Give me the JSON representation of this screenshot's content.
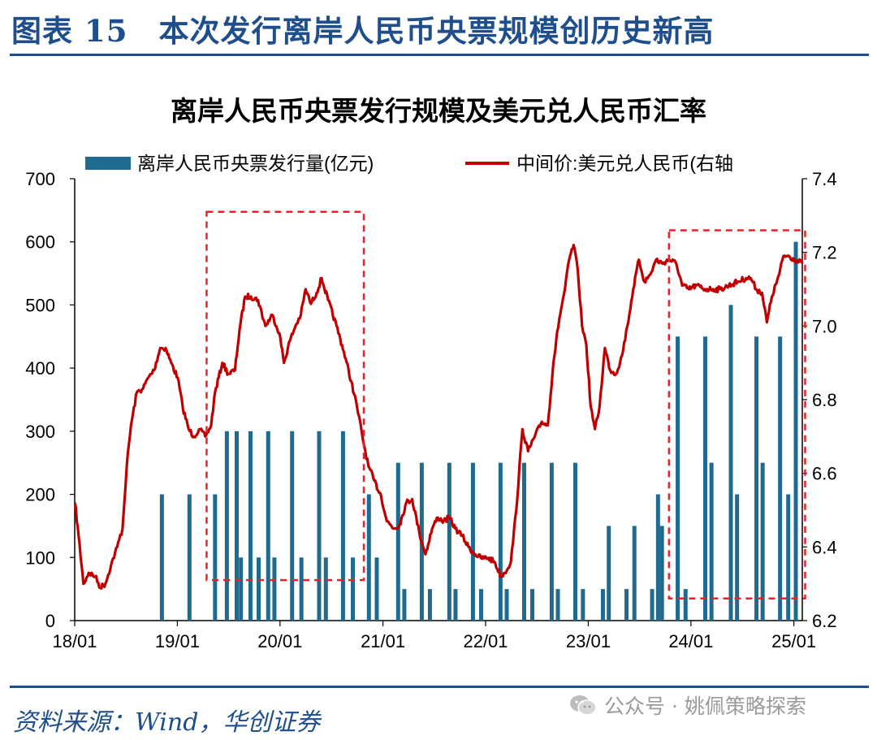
{
  "header": {
    "prefix": "图表",
    "number": "15",
    "title": "本次发行离岸人民币央票规模创历史新高"
  },
  "source": "资料来源：Wind，华创证券",
  "watermark": {
    "dot": "公众号 · 姚佩策略探索",
    "icon": "wechat-icon"
  },
  "colors": {
    "bar": "#1f6b8f",
    "line": "#c00000",
    "box": "#e8212c",
    "brand": "#1f4e8c"
  },
  "chart_data": {
    "type": "bar+line",
    "title": "离岸人民币央票发行规模及美元兑人民币汇率",
    "legend": [
      "离岸人民币央票发行量(亿元)",
      "中间价:美元兑人民币(右轴"
    ],
    "legend_position": "top",
    "grid": false,
    "x_range": [
      "2018-01-01",
      "2025-01-31"
    ],
    "x_ticks": [
      "18/01",
      "19/01",
      "20/01",
      "21/01",
      "22/01",
      "23/01",
      "24/01",
      "25/01"
    ],
    "y_left": {
      "range": [
        0,
        700
      ],
      "ticks": [
        "0",
        "100",
        "200",
        "300",
        "400",
        "500",
        "600",
        "700"
      ]
    },
    "y_right": {
      "range": [
        6.2,
        7.4
      ],
      "ticks": [
        "6.2",
        "6.4",
        "6.6",
        "6.8",
        "7.0",
        "7.2",
        "7.4"
      ]
    },
    "bars": {
      "name": "离岸人民币央票发行量(亿元)",
      "points": [
        [
          "2018-11-07",
          200
        ],
        [
          "2019-02-13",
          200
        ],
        [
          "2019-05-15",
          200
        ],
        [
          "2019-06-26",
          300
        ],
        [
          "2019-07-31",
          300
        ],
        [
          "2019-08-15",
          100
        ],
        [
          "2019-09-18",
          300
        ],
        [
          "2019-10-17",
          100
        ],
        [
          "2019-11-20",
          300
        ],
        [
          "2019-12-12",
          100
        ],
        [
          "2020-02-13",
          300
        ],
        [
          "2020-03-17",
          100
        ],
        [
          "2020-05-19",
          300
        ],
        [
          "2020-06-12",
          100
        ],
        [
          "2020-08-12",
          300
        ],
        [
          "2020-09-16",
          100
        ],
        [
          "2020-11-12",
          200
        ],
        [
          "2020-12-10",
          100
        ],
        [
          "2021-02-24",
          250
        ],
        [
          "2021-03-18",
          50
        ],
        [
          "2021-05-19",
          250
        ],
        [
          "2021-06-17",
          50
        ],
        [
          "2021-08-25",
          250
        ],
        [
          "2021-09-16",
          50
        ],
        [
          "2021-11-17",
          250
        ],
        [
          "2021-12-16",
          50
        ],
        [
          "2022-02-23",
          250
        ],
        [
          "2022-03-17",
          50
        ],
        [
          "2022-05-18",
          250
        ],
        [
          "2022-06-16",
          50
        ],
        [
          "2022-08-24",
          250
        ],
        [
          "2022-09-15",
          50
        ],
        [
          "2022-11-16",
          250
        ],
        [
          "2022-12-13",
          50
        ],
        [
          "2023-02-22",
          50
        ],
        [
          "2023-03-15",
          150
        ],
        [
          "2023-05-17",
          50
        ],
        [
          "2023-06-14",
          150
        ],
        [
          "2023-08-16",
          50
        ],
        [
          "2023-09-06",
          200
        ],
        [
          "2023-09-20",
          150
        ],
        [
          "2023-11-15",
          450
        ],
        [
          "2023-12-13",
          50
        ],
        [
          "2024-02-21",
          450
        ],
        [
          "2024-03-14",
          250
        ],
        [
          "2024-05-22",
          500
        ],
        [
          "2024-06-13",
          200
        ],
        [
          "2024-08-21",
          450
        ],
        [
          "2024-09-12",
          250
        ],
        [
          "2024-11-13",
          450
        ],
        [
          "2024-12-12",
          200
        ],
        [
          "2025-01-08",
          600
        ]
      ]
    },
    "line": {
      "name": "中间价:美元兑人民币(右轴",
      "points": [
        [
          "2018-01-02",
          6.52
        ],
        [
          "2018-01-15",
          6.43
        ],
        [
          "2018-02-01",
          6.3
        ],
        [
          "2018-02-20",
          6.33
        ],
        [
          "2018-03-15",
          6.32
        ],
        [
          "2018-04-02",
          6.29
        ],
        [
          "2018-04-20",
          6.3
        ],
        [
          "2018-05-10",
          6.35
        ],
        [
          "2018-06-01",
          6.4
        ],
        [
          "2018-06-20",
          6.45
        ],
        [
          "2018-07-05",
          6.62
        ],
        [
          "2018-07-20",
          6.73
        ],
        [
          "2018-08-10",
          6.82
        ],
        [
          "2018-09-01",
          6.83
        ],
        [
          "2018-09-20",
          6.86
        ],
        [
          "2018-10-10",
          6.88
        ],
        [
          "2018-11-01",
          6.94
        ],
        [
          "2018-11-20",
          6.94
        ],
        [
          "2018-12-10",
          6.9
        ],
        [
          "2019-01-02",
          6.86
        ],
        [
          "2019-01-20",
          6.78
        ],
        [
          "2019-02-10",
          6.72
        ],
        [
          "2019-03-01",
          6.7
        ],
        [
          "2019-03-20",
          6.72
        ],
        [
          "2019-04-10",
          6.7
        ],
        [
          "2019-05-01",
          6.73
        ],
        [
          "2019-05-15",
          6.82
        ],
        [
          "2019-06-10",
          6.9
        ],
        [
          "2019-07-01",
          6.87
        ],
        [
          "2019-07-25",
          6.88
        ],
        [
          "2019-08-10",
          6.99
        ],
        [
          "2019-08-30",
          7.08
        ],
        [
          "2019-09-20",
          7.08
        ],
        [
          "2019-10-15",
          7.07
        ],
        [
          "2019-11-10",
          7.0
        ],
        [
          "2019-12-05",
          7.03
        ],
        [
          "2019-12-30",
          6.98
        ],
        [
          "2020-01-15",
          6.9
        ],
        [
          "2020-02-05",
          6.96
        ],
        [
          "2020-02-25",
          7.0
        ],
        [
          "2020-03-15",
          7.03
        ],
        [
          "2020-04-01",
          7.1
        ],
        [
          "2020-04-20",
          7.06
        ],
        [
          "2020-05-10",
          7.09
        ],
        [
          "2020-05-28",
          7.13
        ],
        [
          "2020-06-20",
          7.07
        ],
        [
          "2020-07-20",
          7.0
        ],
        [
          "2020-08-15",
          6.93
        ],
        [
          "2020-09-10",
          6.85
        ],
        [
          "2020-10-01",
          6.78
        ],
        [
          "2020-10-20",
          6.7
        ],
        [
          "2020-11-10",
          6.62
        ],
        [
          "2020-12-01",
          6.58
        ],
        [
          "2020-12-25",
          6.54
        ],
        [
          "2021-01-15",
          6.47
        ],
        [
          "2021-02-10",
          6.45
        ],
        [
          "2021-03-01",
          6.46
        ],
        [
          "2021-03-25",
          6.52
        ],
        [
          "2021-04-15",
          6.53
        ],
        [
          "2021-05-10",
          6.44
        ],
        [
          "2021-06-01",
          6.38
        ],
        [
          "2021-06-25",
          6.45
        ],
        [
          "2021-07-15",
          6.48
        ],
        [
          "2021-08-05",
          6.47
        ],
        [
          "2021-08-25",
          6.48
        ],
        [
          "2021-09-15",
          6.45
        ],
        [
          "2021-10-10",
          6.43
        ],
        [
          "2021-11-01",
          6.4
        ],
        [
          "2021-11-25",
          6.38
        ],
        [
          "2021-12-15",
          6.37
        ],
        [
          "2022-01-10",
          6.37
        ],
        [
          "2022-02-01",
          6.36
        ],
        [
          "2022-02-25",
          6.32
        ],
        [
          "2022-03-10",
          6.33
        ],
        [
          "2022-04-01",
          6.36
        ],
        [
          "2022-04-20",
          6.5
        ],
        [
          "2022-05-12",
          6.72
        ],
        [
          "2022-06-01",
          6.66
        ],
        [
          "2022-06-25",
          6.7
        ],
        [
          "2022-07-20",
          6.74
        ],
        [
          "2022-08-10",
          6.73
        ],
        [
          "2022-08-30",
          6.9
        ],
        [
          "2022-09-20",
          7.02
        ],
        [
          "2022-10-10",
          7.1
        ],
        [
          "2022-10-25",
          7.18
        ],
        [
          "2022-11-10",
          7.22
        ],
        [
          "2022-11-25",
          7.15
        ],
        [
          "2022-12-10",
          7.0
        ],
        [
          "2022-12-25",
          6.95
        ],
        [
          "2023-01-10",
          6.78
        ],
        [
          "2023-01-25",
          6.72
        ],
        [
          "2023-02-10",
          6.78
        ],
        [
          "2023-03-01",
          6.94
        ],
        [
          "2023-03-20",
          6.88
        ],
        [
          "2023-04-10",
          6.87
        ],
        [
          "2023-05-01",
          6.92
        ],
        [
          "2023-05-20",
          7.0
        ],
        [
          "2023-06-10",
          7.1
        ],
        [
          "2023-06-30",
          7.18
        ],
        [
          "2023-07-20",
          7.12
        ],
        [
          "2023-08-10",
          7.14
        ],
        [
          "2023-08-30",
          7.18
        ],
        [
          "2023-09-20",
          7.17
        ],
        [
          "2023-10-15",
          7.18
        ],
        [
          "2023-11-10",
          7.17
        ],
        [
          "2023-12-01",
          7.11
        ],
        [
          "2023-12-25",
          7.1
        ],
        [
          "2024-01-20",
          7.11
        ],
        [
          "2024-02-20",
          7.1
        ],
        [
          "2024-03-20",
          7.1
        ],
        [
          "2024-04-15",
          7.1
        ],
        [
          "2024-05-15",
          7.11
        ],
        [
          "2024-06-15",
          7.12
        ],
        [
          "2024-07-15",
          7.13
        ],
        [
          "2024-08-01",
          7.13
        ],
        [
          "2024-08-20",
          7.1
        ],
        [
          "2024-09-10",
          7.09
        ],
        [
          "2024-09-27",
          7.01
        ],
        [
          "2024-10-15",
          7.08
        ],
        [
          "2024-11-10",
          7.14
        ],
        [
          "2024-11-25",
          7.19
        ],
        [
          "2024-12-15",
          7.19
        ],
        [
          "2025-01-05",
          7.18
        ],
        [
          "2025-01-31",
          7.17
        ]
      ]
    },
    "highlight_periods": [
      {
        "from": "2019-04-15",
        "to": "2020-10-25",
        "y_right": [
          6.31,
          7.31
        ]
      },
      {
        "from": "2023-10-15",
        "to": "2025-02-10",
        "y_right": [
          6.26,
          7.26
        ]
      }
    ]
  }
}
